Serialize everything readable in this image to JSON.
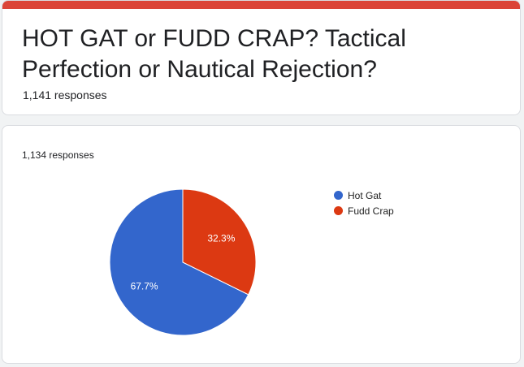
{
  "form": {
    "title": "HOT GAT or FUDD CRAP? Tactical Perfection or Nautical Rejection?",
    "responses": "1,141 responses",
    "accent_color": "#db4437"
  },
  "question": {
    "responses": "1,134 responses"
  },
  "chart_data": {
    "type": "pie",
    "categories": [
      "Hot Gat",
      "Fudd Crap"
    ],
    "values": [
      67.7,
      32.3
    ],
    "labels": [
      "67.7%",
      "32.3%"
    ],
    "colors": [
      "#3366cc",
      "#dc3912"
    ],
    "legend_position": "right"
  }
}
